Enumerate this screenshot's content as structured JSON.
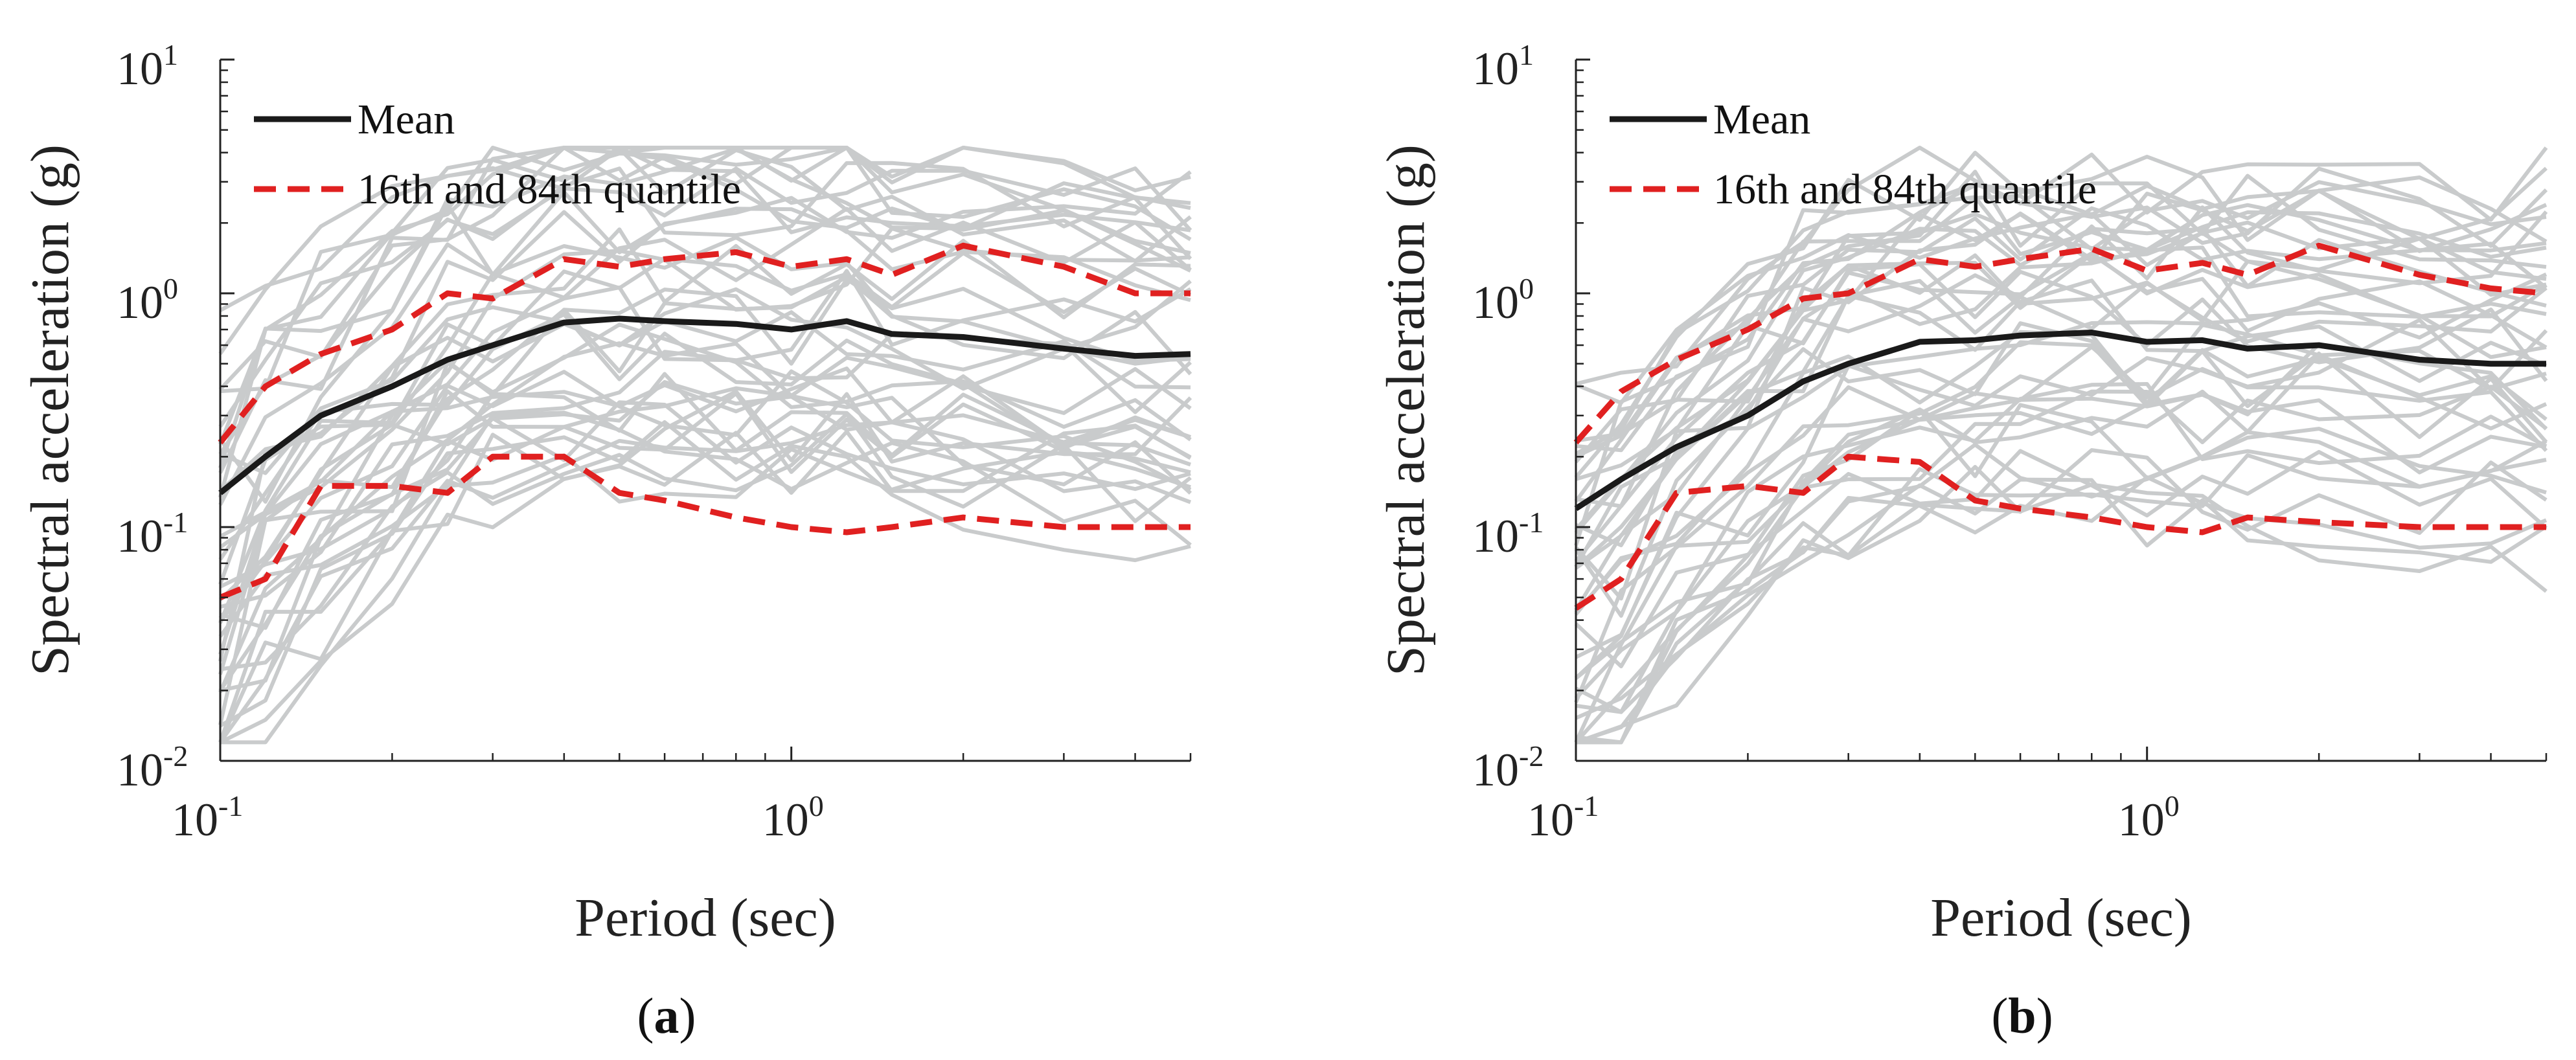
{
  "chart_data": [
    {
      "type": "line",
      "panel_label": "a",
      "xlabel": "Period (sec)",
      "ylabel": "Spectral acceleration (g)",
      "xscale": "log",
      "yscale": "log",
      "xlim": [
        0.1,
        5
      ],
      "ylim": [
        0.01,
        10
      ],
      "x_ticks": [
        {
          "base": "10",
          "exp": "-1"
        },
        {
          "base": "10",
          "exp": "0"
        }
      ],
      "y_ticks": [
        {
          "base": "10",
          "exp": "-2"
        },
        {
          "base": "10",
          "exp": "-1"
        },
        {
          "base": "10",
          "exp": "0"
        },
        {
          "base": "10",
          "exp": "1"
        }
      ],
      "legend": {
        "position": "top-left",
        "entries": [
          "Mean",
          "16th and 84th quantile"
        ]
      },
      "x": [
        0.1,
        0.12,
        0.15,
        0.2,
        0.25,
        0.3,
        0.4,
        0.5,
        0.6,
        0.8,
        1.0,
        1.25,
        1.5,
        2.0,
        3.0,
        4.0,
        5.0
      ],
      "series": [
        {
          "name": "Mean",
          "style": "solid",
          "color": "#1a1a1a",
          "values": [
            0.14,
            0.2,
            0.3,
            0.4,
            0.52,
            0.6,
            0.75,
            0.78,
            0.76,
            0.74,
            0.7,
            0.76,
            0.67,
            0.65,
            0.58,
            0.54,
            0.55
          ]
        },
        {
          "name": "16th quantile",
          "style": "dashed",
          "color": "#e02020",
          "values": [
            0.05,
            0.06,
            0.15,
            0.15,
            0.14,
            0.2,
            0.2,
            0.14,
            0.13,
            0.11,
            0.1,
            0.095,
            0.1,
            0.11,
            0.1,
            0.1,
            0.1
          ]
        },
        {
          "name": "84th quantile",
          "style": "dashed",
          "color": "#e02020",
          "values": [
            0.23,
            0.4,
            0.55,
            0.7,
            1.0,
            0.95,
            1.4,
            1.3,
            1.4,
            1.5,
            1.3,
            1.4,
            1.2,
            1.6,
            1.3,
            1.0,
            1.0
          ]
        }
      ],
      "record_count": 40
    },
    {
      "type": "line",
      "panel_label": "b",
      "xlabel": "Period (sec)",
      "ylabel": "Spectral acceleration (g)",
      "xscale": "log",
      "yscale": "log",
      "xlim": [
        0.1,
        5
      ],
      "ylim": [
        0.01,
        10
      ],
      "x_ticks": [
        {
          "base": "10",
          "exp": "-1"
        },
        {
          "base": "10",
          "exp": "0"
        }
      ],
      "y_ticks": [
        {
          "base": "10",
          "exp": "-2"
        },
        {
          "base": "10",
          "exp": "-1"
        },
        {
          "base": "10",
          "exp": "0"
        },
        {
          "base": "10",
          "exp": "1"
        }
      ],
      "legend": {
        "position": "top-left",
        "entries": [
          "Mean",
          "16th and 84th quantile"
        ]
      },
      "x": [
        0.1,
        0.12,
        0.15,
        0.2,
        0.25,
        0.3,
        0.4,
        0.5,
        0.6,
        0.8,
        1.0,
        1.25,
        1.5,
        2.0,
        3.0,
        4.0,
        5.0
      ],
      "series": [
        {
          "name": "Mean",
          "style": "solid",
          "color": "#1a1a1a",
          "values": [
            0.12,
            0.16,
            0.22,
            0.3,
            0.42,
            0.5,
            0.62,
            0.63,
            0.66,
            0.68,
            0.62,
            0.63,
            0.58,
            0.6,
            0.52,
            0.5,
            0.5
          ]
        },
        {
          "name": "16th quantile",
          "style": "dashed",
          "color": "#e02020",
          "values": [
            0.045,
            0.06,
            0.14,
            0.15,
            0.14,
            0.2,
            0.19,
            0.13,
            0.12,
            0.11,
            0.1,
            0.095,
            0.11,
            0.105,
            0.1,
            0.1,
            0.1
          ]
        },
        {
          "name": "84th quantile",
          "style": "dashed",
          "color": "#e02020",
          "values": [
            0.23,
            0.38,
            0.52,
            0.7,
            0.95,
            1.0,
            1.4,
            1.3,
            1.4,
            1.55,
            1.25,
            1.35,
            1.2,
            1.6,
            1.2,
            1.05,
            1.0
          ]
        }
      ],
      "record_count": 40
    }
  ]
}
